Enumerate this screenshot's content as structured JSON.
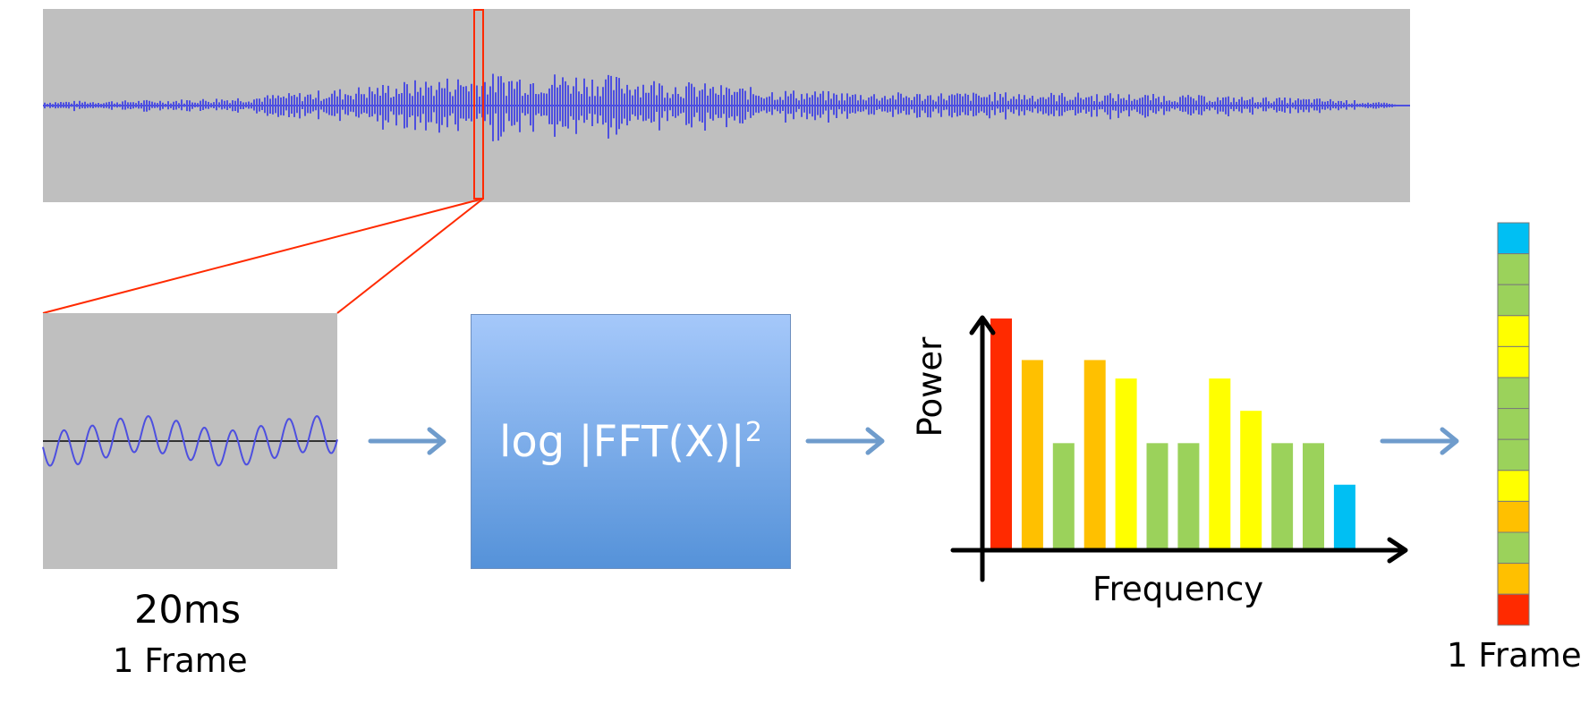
{
  "formula": {
    "text": "log |FFT(X)|",
    "exponent": "2"
  },
  "segment": {
    "duration": "20ms",
    "frame_label": "1 Frame"
  },
  "output": {
    "frame_label": "1 Frame"
  },
  "chart_data": {
    "type": "bar",
    "xlabel": "Frequency",
    "ylabel": "Power",
    "values": [
      10,
      8.2,
      4.6,
      8.2,
      7.4,
      4.6,
      4.6,
      7.4,
      6.0,
      4.6,
      4.6,
      2.8
    ],
    "bar_colors": [
      "#ff2a00",
      "#ffc000",
      "#9bd25b",
      "#ffc000",
      "#ffff00",
      "#9bd25b",
      "#9bd25b",
      "#ffff00",
      "#ffff00",
      "#9bd25b",
      "#9bd25b",
      "#00bff3"
    ]
  },
  "feature_vector": {
    "cell_colors": [
      "#00bff3",
      "#9bd25b",
      "#9bd25b",
      "#ffff00",
      "#ffff00",
      "#9bd25b",
      "#9bd25b",
      "#9bd25b",
      "#ffff00",
      "#ffc000",
      "#9bd25b",
      "#ffc000",
      "#ff2a00"
    ]
  },
  "colors": {
    "waveform": "#4d4fe0",
    "panel": "#bfbfbf",
    "zoom": "#ff2a00",
    "arrow": "#6f9ccc"
  }
}
